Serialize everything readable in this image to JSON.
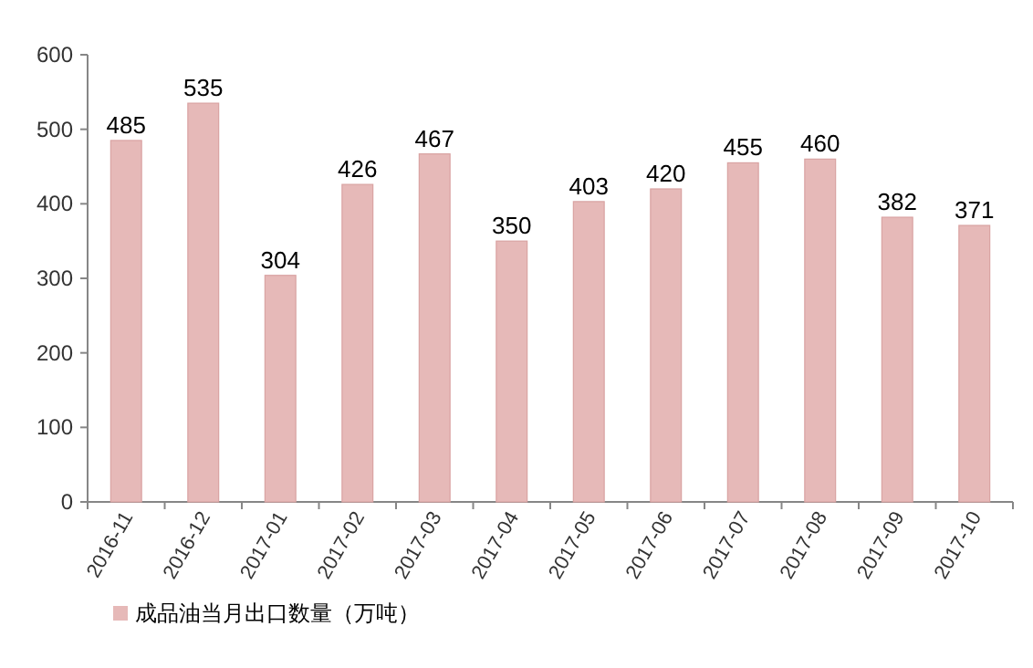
{
  "chart_data": {
    "type": "bar",
    "categories": [
      "2016-11",
      "2016-12",
      "2017-01",
      "2017-02",
      "2017-03",
      "2017-04",
      "2017-05",
      "2017-06",
      "2017-07",
      "2017-08",
      "2017-09",
      "2017-10"
    ],
    "series": [
      {
        "name": "成品油当月出口数量（万吨）",
        "color": "#e6b9b8",
        "values": [
          485,
          535,
          304,
          426,
          467,
          350,
          403,
          420,
          455,
          460,
          382,
          371
        ]
      }
    ],
    "ylim": [
      0,
      600
    ],
    "yticks": [
      0,
      100,
      200,
      300,
      400,
      500,
      600
    ],
    "data_labels": true,
    "legend": "bottom left",
    "grid": false
  }
}
